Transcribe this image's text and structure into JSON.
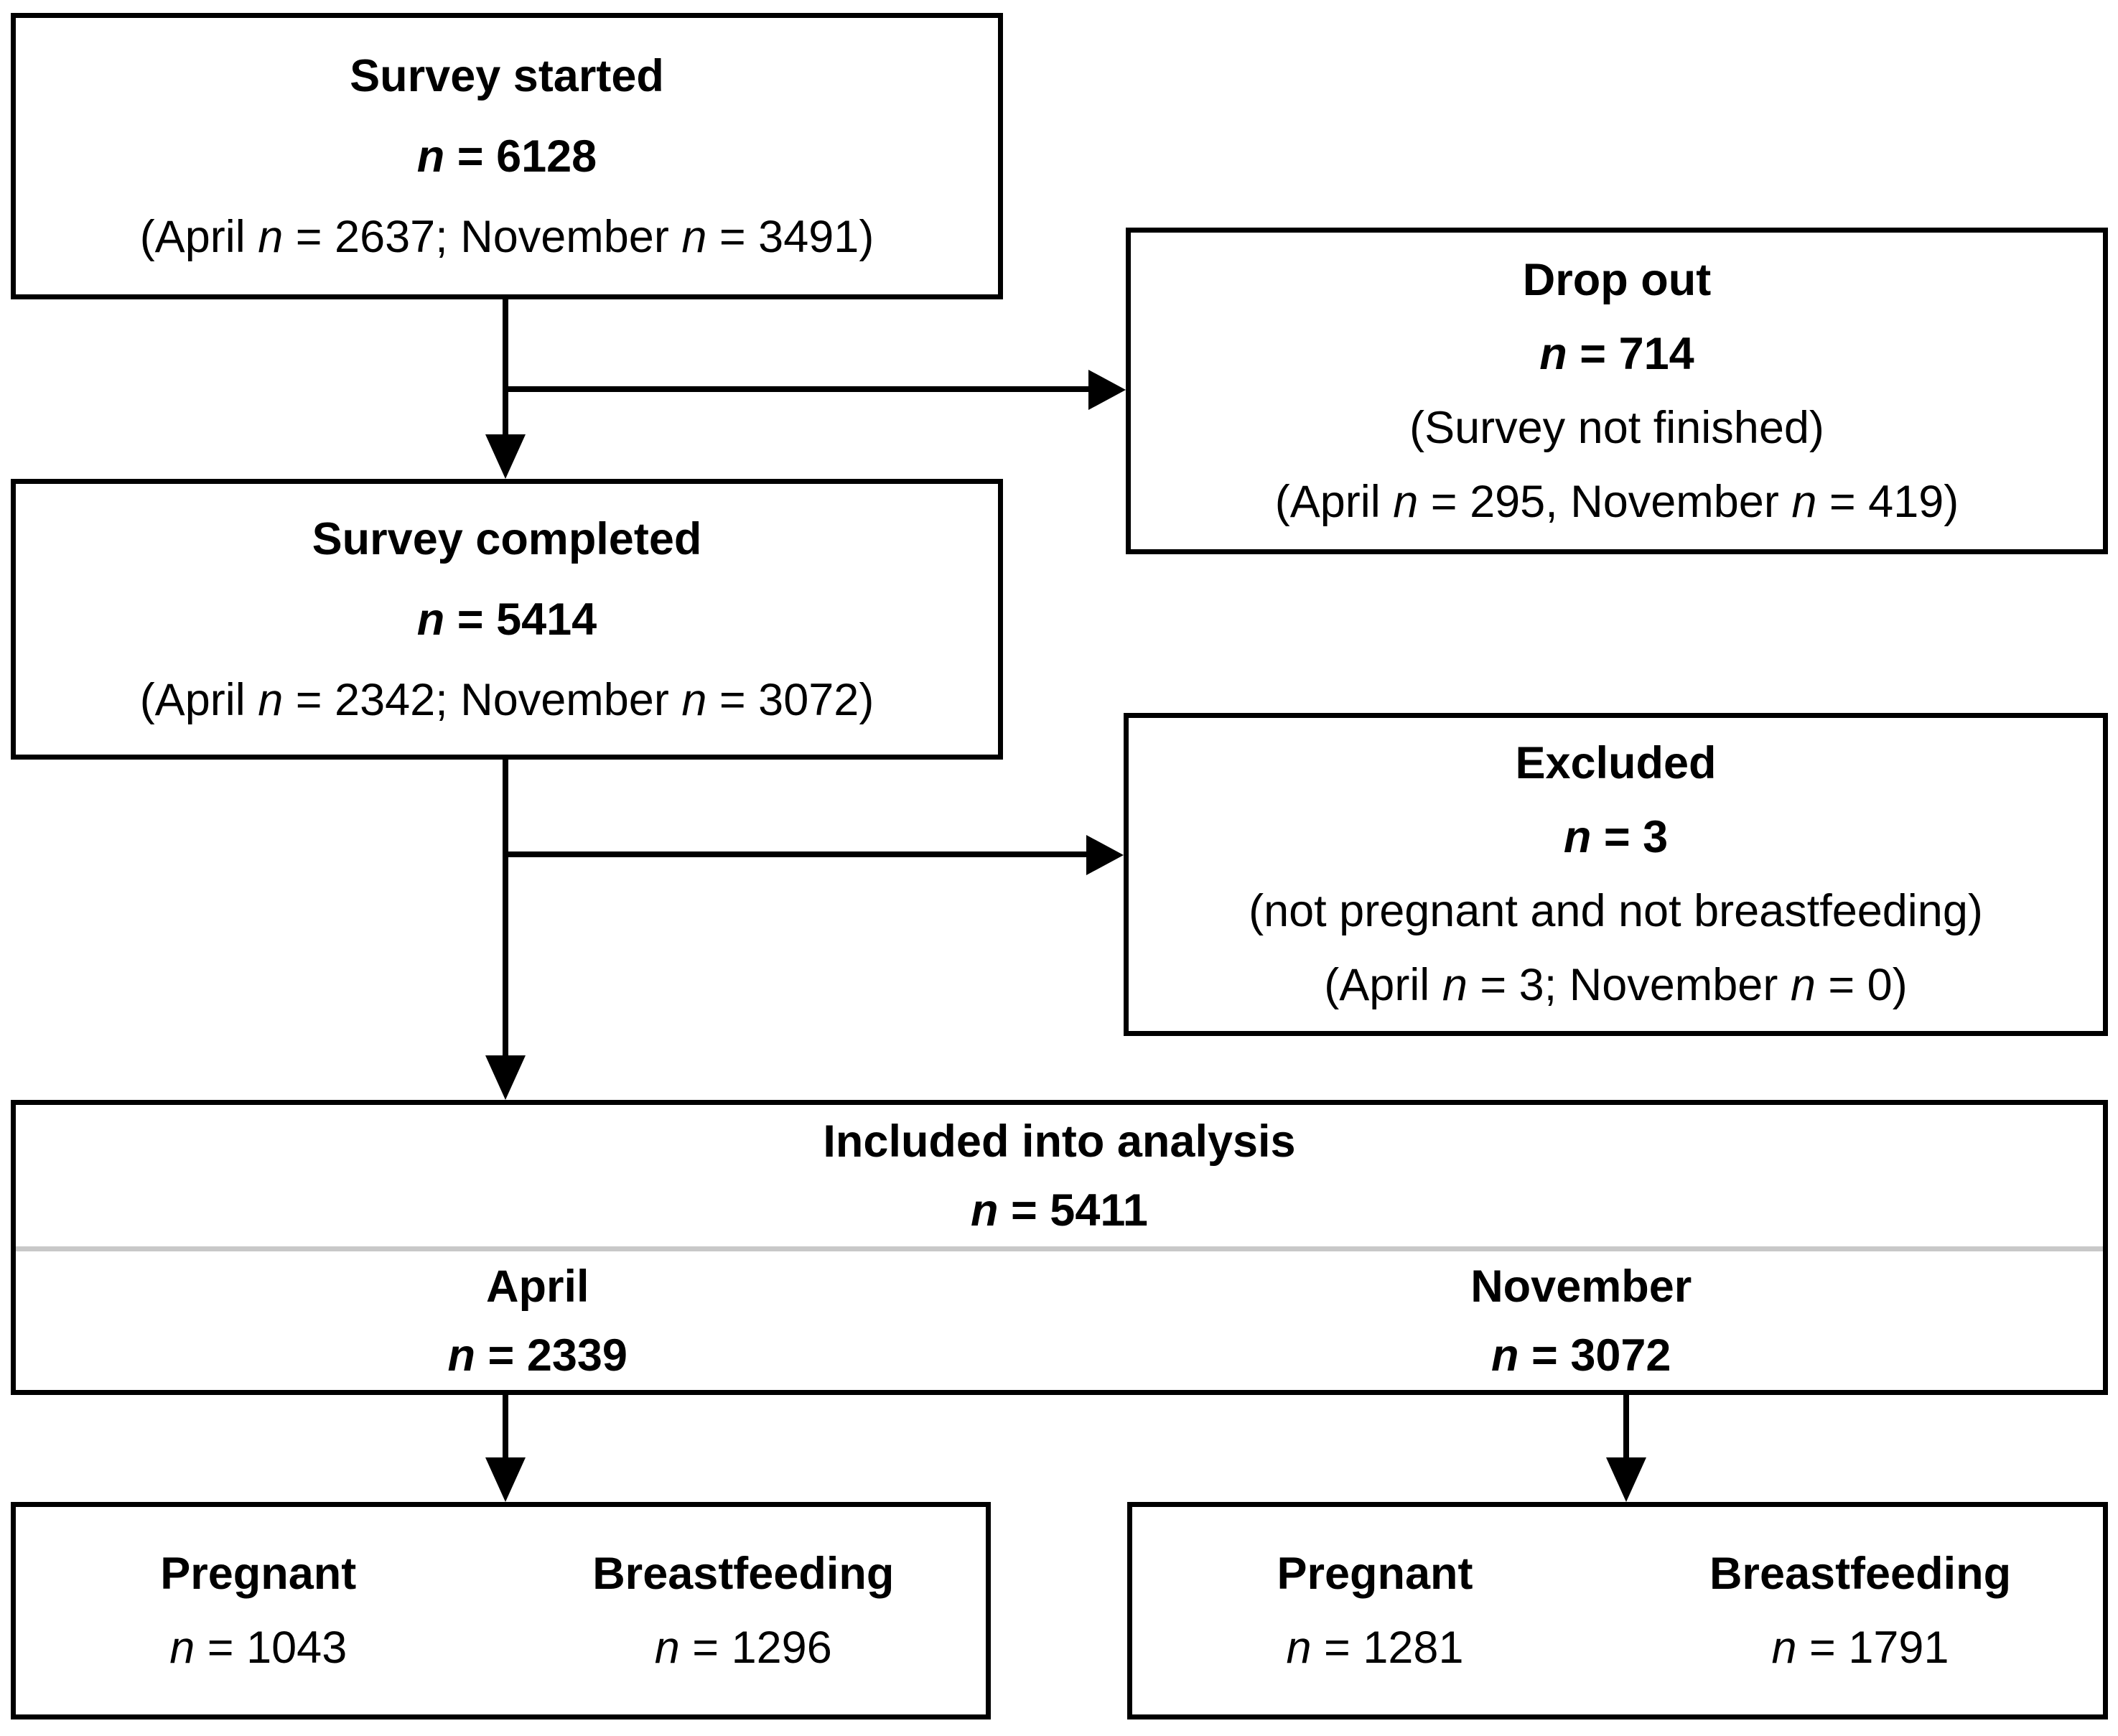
{
  "figure": {
    "kind": "participant-flow-diagram",
    "background_color": "#ffffff",
    "line_color": "#000000",
    "divider_color": "#c8c8c8"
  },
  "boxes": {
    "survey_started": {
      "lines": [
        [
          {
            "t": "Survey started",
            "b": 1
          }
        ],
        [
          {
            "t": "n",
            "b": 1,
            "i": 1
          },
          {
            "t": " = 6128",
            "b": 1
          }
        ],
        [
          {
            "t": "(April "
          },
          {
            "t": "n",
            "i": 1
          },
          {
            "t": " = 2637; November "
          },
          {
            "t": "n",
            "i": 1
          },
          {
            "t": " = 3491)"
          }
        ]
      ]
    },
    "drop_out": {
      "lines": [
        [
          {
            "t": "Drop out",
            "b": 1
          }
        ],
        [
          {
            "t": "n",
            "b": 1,
            "i": 1
          },
          {
            "t": " = 714",
            "b": 1
          }
        ],
        [
          {
            "t": "(Survey not finished)"
          }
        ],
        [
          {
            "t": "(April "
          },
          {
            "t": "n",
            "i": 1
          },
          {
            "t": " = 295, November "
          },
          {
            "t": "n",
            "i": 1
          },
          {
            "t": " = 419)"
          }
        ]
      ]
    },
    "survey_completed": {
      "lines": [
        [
          {
            "t": "Survey completed",
            "b": 1
          }
        ],
        [
          {
            "t": "n",
            "b": 1,
            "i": 1
          },
          {
            "t": " = 5414",
            "b": 1
          }
        ],
        [
          {
            "t": "(April "
          },
          {
            "t": "n",
            "i": 1
          },
          {
            "t": " = 2342; November "
          },
          {
            "t": "n",
            "i": 1
          },
          {
            "t": " = 3072)"
          }
        ]
      ]
    },
    "excluded": {
      "lines": [
        [
          {
            "t": "Excluded",
            "b": 1
          }
        ],
        [
          {
            "t": "n",
            "b": 1,
            "i": 1
          },
          {
            "t": " = 3",
            "b": 1
          }
        ],
        [
          {
            "t": "(not pregnant and not breastfeeding)"
          }
        ],
        [
          {
            "t": "(April "
          },
          {
            "t": "n",
            "i": 1
          },
          {
            "t": " = 3; November "
          },
          {
            "t": "n",
            "i": 1
          },
          {
            "t": " = 0)"
          }
        ]
      ]
    },
    "included": {
      "header_lines": [
        [
          {
            "t": "Included into analysis",
            "b": 1
          }
        ],
        [
          {
            "t": "n",
            "b": 1,
            "i": 1
          },
          {
            "t": " = 5411",
            "b": 1
          }
        ]
      ],
      "april_lines": [
        [
          {
            "t": "April",
            "b": 1
          }
        ],
        [
          {
            "t": "n",
            "b": 1,
            "i": 1
          },
          {
            "t": " = 2339",
            "b": 1
          }
        ]
      ],
      "november_lines": [
        [
          {
            "t": "November",
            "b": 1
          }
        ],
        [
          {
            "t": "n",
            "b": 1,
            "i": 1
          },
          {
            "t": " = 3072",
            "b": 1
          }
        ]
      ]
    },
    "april_outcomes": {
      "pregnant_lines": [
        [
          {
            "t": "Pregnant",
            "b": 1
          }
        ],
        [
          {
            "t": "n",
            "i": 1
          },
          {
            "t": " = 1043"
          }
        ]
      ],
      "breastfeeding_lines": [
        [
          {
            "t": "Breastfeeding",
            "b": 1
          }
        ],
        [
          {
            "t": "n",
            "i": 1
          },
          {
            "t": " = 1296"
          }
        ]
      ]
    },
    "november_outcomes": {
      "pregnant_lines": [
        [
          {
            "t": "Pregnant",
            "b": 1
          }
        ],
        [
          {
            "t": "n",
            "i": 1
          },
          {
            "t": " = 1281"
          }
        ]
      ],
      "breastfeeding_lines": [
        [
          {
            "t": "Breastfeeding",
            "b": 1
          }
        ],
        [
          {
            "t": "n",
            "i": 1
          },
          {
            "t": " = 1791"
          }
        ]
      ]
    }
  }
}
